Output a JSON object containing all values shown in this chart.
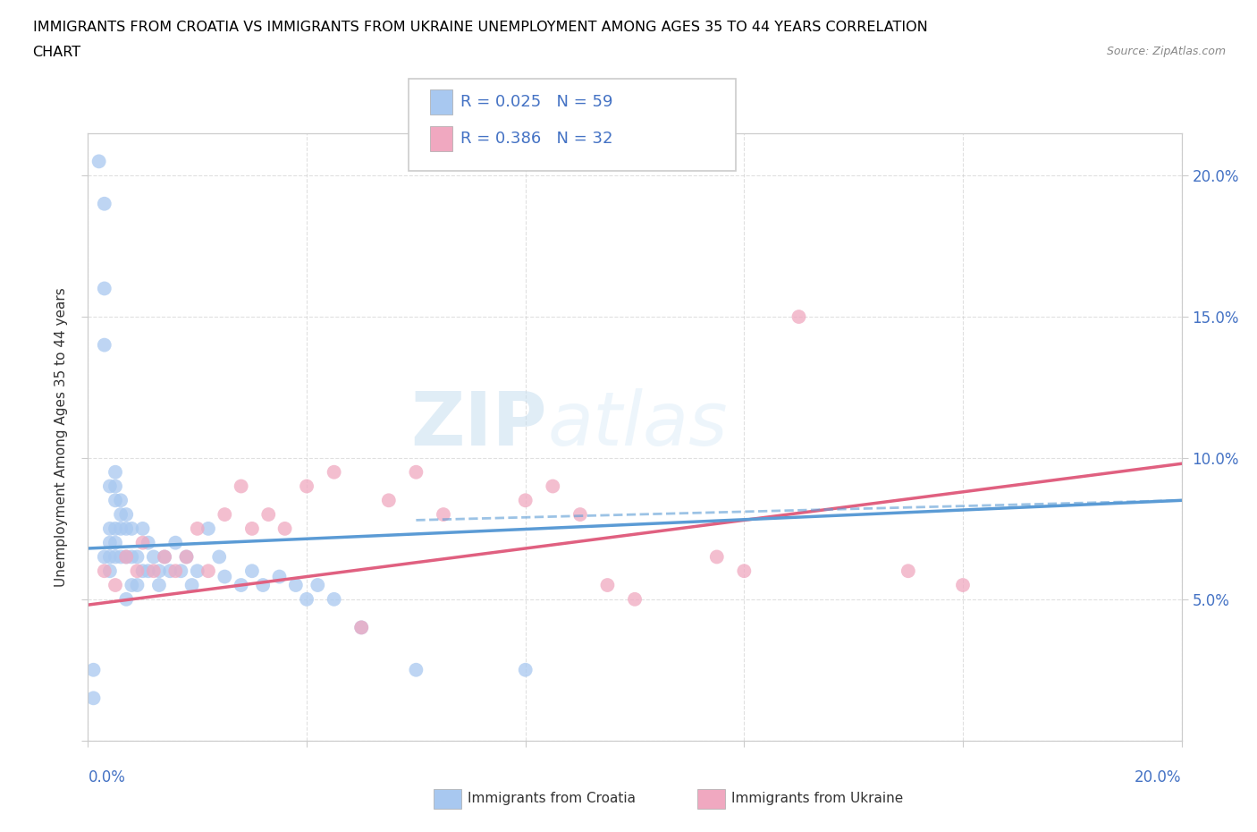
{
  "title_line1": "IMMIGRANTS FROM CROATIA VS IMMIGRANTS FROM UKRAINE UNEMPLOYMENT AMONG AGES 35 TO 44 YEARS CORRELATION",
  "title_line2": "CHART",
  "source": "Source: ZipAtlas.com",
  "ylabel": "Unemployment Among Ages 35 to 44 years",
  "legend_croatia": "R = 0.025   N = 59",
  "legend_ukraine": "R = 0.386   N = 32",
  "legend_label_croatia": "Immigrants from Croatia",
  "legend_label_ukraine": "Immigrants from Ukraine",
  "watermark_zip": "ZIP",
  "watermark_atlas": "atlas",
  "color_croatia": "#a8c8f0",
  "color_ukraine": "#f0a8c0",
  "color_croatia_line": "#5b9bd5",
  "color_ukraine_line": "#e06080",
  "color_text_blue": "#4472c4",
  "color_grid": "#cccccc",
  "xmin": 0.0,
  "xmax": 0.2,
  "ymin": 0.0,
  "ymax": 0.215,
  "croatia_scatter_x": [
    0.002,
    0.003,
    0.003,
    0.003,
    0.003,
    0.004,
    0.004,
    0.004,
    0.004,
    0.004,
    0.005,
    0.005,
    0.005,
    0.005,
    0.005,
    0.005,
    0.006,
    0.006,
    0.006,
    0.006,
    0.007,
    0.007,
    0.007,
    0.007,
    0.008,
    0.008,
    0.008,
    0.009,
    0.009,
    0.01,
    0.01,
    0.011,
    0.011,
    0.012,
    0.013,
    0.013,
    0.014,
    0.015,
    0.016,
    0.017,
    0.018,
    0.019,
    0.02,
    0.022,
    0.024,
    0.025,
    0.028,
    0.03,
    0.032,
    0.035,
    0.038,
    0.04,
    0.042,
    0.045,
    0.05,
    0.06,
    0.08,
    0.001,
    0.001
  ],
  "croatia_scatter_y": [
    0.205,
    0.19,
    0.16,
    0.14,
    0.065,
    0.09,
    0.075,
    0.07,
    0.065,
    0.06,
    0.095,
    0.09,
    0.085,
    0.075,
    0.07,
    0.065,
    0.085,
    0.08,
    0.075,
    0.065,
    0.08,
    0.075,
    0.065,
    0.05,
    0.075,
    0.065,
    0.055,
    0.065,
    0.055,
    0.075,
    0.06,
    0.07,
    0.06,
    0.065,
    0.06,
    0.055,
    0.065,
    0.06,
    0.07,
    0.06,
    0.065,
    0.055,
    0.06,
    0.075,
    0.065,
    0.058,
    0.055,
    0.06,
    0.055,
    0.058,
    0.055,
    0.05,
    0.055,
    0.05,
    0.04,
    0.025,
    0.025,
    0.025,
    0.015
  ],
  "ukraine_scatter_x": [
    0.003,
    0.005,
    0.007,
    0.009,
    0.01,
    0.012,
    0.014,
    0.016,
    0.018,
    0.02,
    0.022,
    0.025,
    0.028,
    0.03,
    0.033,
    0.036,
    0.04,
    0.045,
    0.05,
    0.055,
    0.06,
    0.065,
    0.08,
    0.085,
    0.09,
    0.095,
    0.1,
    0.115,
    0.12,
    0.13,
    0.15,
    0.16
  ],
  "ukraine_scatter_y": [
    0.06,
    0.055,
    0.065,
    0.06,
    0.07,
    0.06,
    0.065,
    0.06,
    0.065,
    0.075,
    0.06,
    0.08,
    0.09,
    0.075,
    0.08,
    0.075,
    0.09,
    0.095,
    0.04,
    0.085,
    0.095,
    0.08,
    0.085,
    0.09,
    0.08,
    0.055,
    0.05,
    0.065,
    0.06,
    0.15,
    0.06,
    0.055
  ],
  "croatia_trend_x": [
    0.0,
    0.2
  ],
  "croatia_trend_y": [
    0.068,
    0.085
  ],
  "ukraine_trend_x": [
    0.0,
    0.2
  ],
  "ukraine_trend_y": [
    0.048,
    0.098
  ]
}
